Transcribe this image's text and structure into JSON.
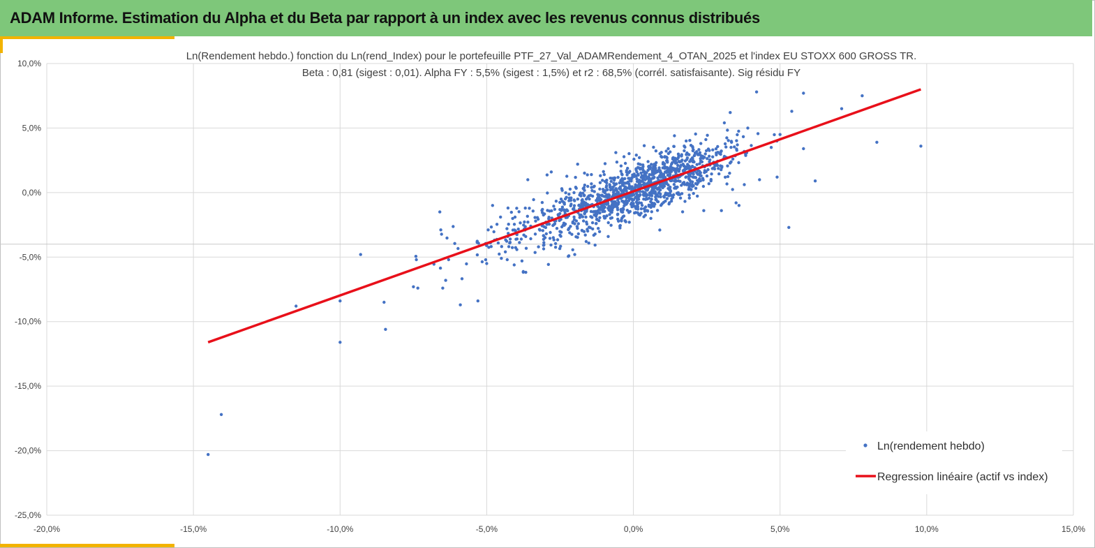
{
  "header": {
    "title": "ADAM Informe. Estimation du Alpha et du Beta par rapport à un index avec les revenus connus distribués"
  },
  "colors": {
    "header_bg": "#7ec77a",
    "accent": "#f2b300",
    "points": "#4472c4",
    "regression": "#e8101a",
    "grid": "#d9d9d9"
  },
  "chart_data": {
    "type": "scatter",
    "title_line1": "Ln(Rendement hebdo.) fonction du Ln(rend_Index) pour le portefeuille PTF_27_Val_ADAMRendement_4_OTAN_2025 et l'index EU STOXX 600 GROSS TR.",
    "title_line2": "Beta : 0,81 (sigest : 0,01).  Alpha FY : 5,5% (sigest : 1,5%) et r2 : 68,5% (corrél. satisfaisante). Sig résidu FY",
    "xlim": [
      -20,
      15
    ],
    "ylim": [
      -25,
      10
    ],
    "x_ticks": [
      -20,
      -15,
      -10,
      -5,
      0,
      5,
      10,
      15
    ],
    "y_ticks": [
      10,
      5,
      0,
      -5,
      -10,
      -15,
      -20,
      -25
    ],
    "x_tick_labels": [
      "-20,0%",
      "-15,0%",
      "-10,0%",
      "-5,0%",
      "0,0%",
      "5,0%",
      "10,0%",
      "15,0%"
    ],
    "y_tick_labels": [
      "10,0%",
      "5,0%",
      "0,0%",
      "-5,0%",
      "-10,0%",
      "-15,0%",
      "-20,0%",
      "-25,0%"
    ],
    "extra_hline_y": -4.0,
    "beta": 0.81,
    "alpha": 0.1,
    "series": [
      {
        "name": "Ln(rendement hebdo)",
        "kind": "scatter",
        "points": [
          [
            -14.5,
            -20.3
          ],
          [
            -14.05,
            -17.2
          ],
          [
            -11.5,
            -8.8
          ],
          [
            -10,
            -11.6
          ],
          [
            -10,
            -8.4
          ],
          [
            -9.3,
            -4.8
          ],
          [
            -8.5,
            -8.5
          ],
          [
            -8.45,
            -10.6
          ],
          [
            -7.5,
            -7.3
          ],
          [
            -7.4,
            -5.2
          ],
          [
            -7.35,
            -7.4
          ],
          [
            -6.6,
            -1.5
          ],
          [
            -6.5,
            -7.4
          ],
          [
            -6.4,
            -6.8
          ],
          [
            -6.3,
            -5.2
          ],
          [
            -5.9,
            -8.7
          ],
          [
            -5.3,
            -8.4
          ],
          [
            -5.0,
            -5.5
          ],
          [
            -4.8,
            -1.0
          ],
          [
            -4.5,
            -5.1
          ],
          [
            -4.2,
            -3.6
          ],
          [
            -3.8,
            -5.3
          ],
          [
            -3.6,
            1.0
          ],
          [
            -3.1,
            -1.3
          ],
          [
            -2.8,
            1.6
          ],
          [
            -2.2,
            -4.9
          ],
          [
            -2.0,
            -4.8
          ],
          [
            -1.9,
            2.2
          ],
          [
            -1.7,
            -2.2
          ],
          [
            -1.5,
            -0.5
          ],
          [
            -0.6,
            3.1
          ],
          [
            0.1,
            2.9
          ],
          [
            0.5,
            2.4
          ],
          [
            0.9,
            -2.9
          ],
          [
            1.4,
            4.4
          ],
          [
            1.8,
            4.0
          ],
          [
            2.3,
            3.8
          ],
          [
            2.4,
            -1.4
          ],
          [
            2.8,
            2.3
          ],
          [
            3.0,
            -1.4
          ],
          [
            3.1,
            5.4
          ],
          [
            3.3,
            6.2
          ],
          [
            3.3,
            2.3
          ],
          [
            3.5,
            -0.8
          ],
          [
            3.6,
            -1.0
          ],
          [
            3.9,
            5.0
          ],
          [
            4.2,
            7.8
          ],
          [
            4.3,
            1.0
          ],
          [
            4.7,
            3.5
          ],
          [
            5.0,
            4.5
          ],
          [
            5.3,
            -2.7
          ],
          [
            5.4,
            6.3
          ],
          [
            5.8,
            7.7
          ],
          [
            5.8,
            3.4
          ],
          [
            6.2,
            0.9
          ],
          [
            7.1,
            6.5
          ],
          [
            7.8,
            7.5
          ],
          [
            8.3,
            3.9
          ],
          [
            9.8,
            3.6
          ],
          [
            4.9,
            1.2
          ]
        ]
      },
      {
        "name": "Regression linéaire (actif vs index)",
        "kind": "line",
        "points": [
          [
            -14.5,
            -11.6
          ],
          [
            9.8,
            8.0
          ]
        ]
      }
    ],
    "legend": {
      "position": "bottom-right",
      "entries": [
        "Ln(rendement hebdo)",
        "Regression linéaire (actif vs index)"
      ]
    }
  }
}
